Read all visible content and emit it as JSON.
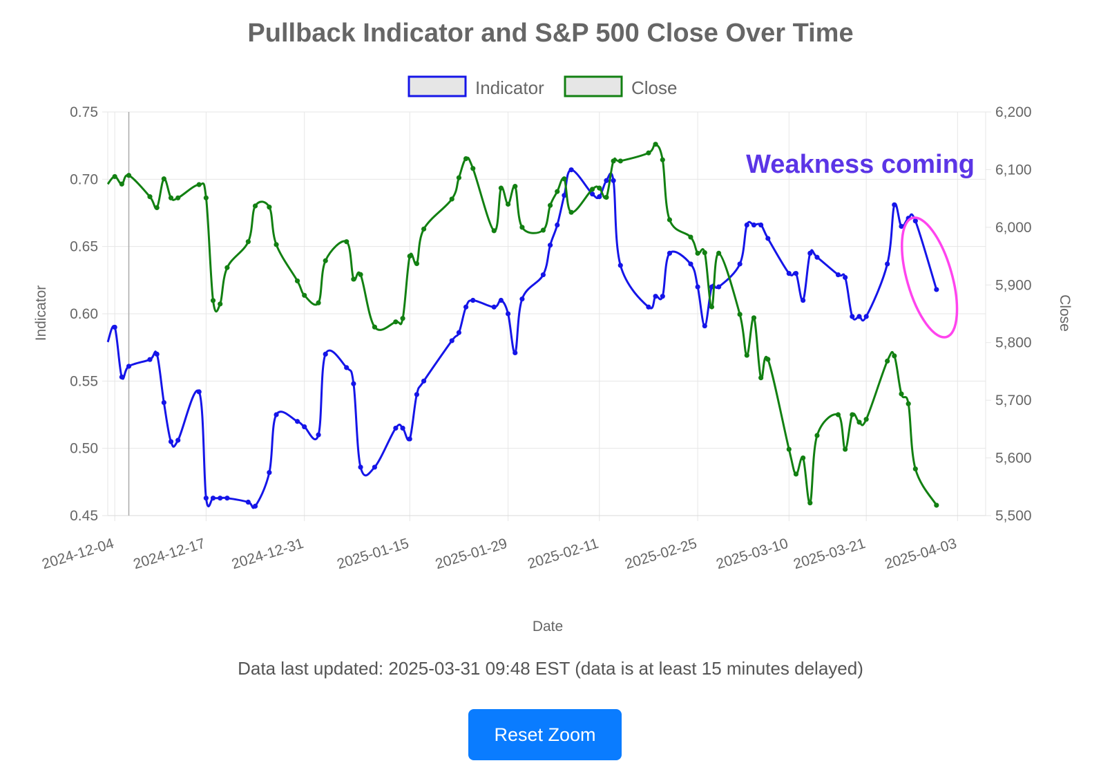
{
  "chart_data": {
    "type": "line",
    "title": "Pullback Indicator and S&P 500 Close Over Time",
    "xlabel": "Date",
    "ylabel_left": "Indicator",
    "ylabel_right": "Close",
    "x_ticks": [
      "2024-12-04",
      "2024-12-17",
      "2024-12-31",
      "2025-01-15",
      "2025-01-29",
      "2025-02-11",
      "2025-02-25",
      "2025-03-10",
      "2025-03-21",
      "2025-04-03"
    ],
    "y_left_ticks": [
      "0.75",
      "0.70",
      "0.65",
      "0.60",
      "0.55",
      "0.50",
      "0.45"
    ],
    "y_right_ticks": [
      "6,200",
      "6,100",
      "6,000",
      "5,900",
      "5,800",
      "5,700",
      "5,600",
      "5,500"
    ],
    "ylim_left": [
      0.45,
      0.75
    ],
    "ylim_right": [
      5500,
      6200
    ],
    "xlim": [
      "2024-12-03",
      "2025-04-07"
    ],
    "grid": true,
    "legend_position": "top",
    "x": [
      "2024-12-03",
      "2024-12-04",
      "2024-12-05",
      "2024-12-06",
      "2024-12-09",
      "2024-12-10",
      "2024-12-11",
      "2024-12-12",
      "2024-12-13",
      "2024-12-16",
      "2024-12-17",
      "2024-12-18",
      "2024-12-19",
      "2024-12-20",
      "2024-12-23",
      "2024-12-24",
      "2024-12-26",
      "2024-12-27",
      "2024-12-30",
      "2024-12-31",
      "2025-01-02",
      "2025-01-03",
      "2025-01-06",
      "2025-01-07",
      "2025-01-08",
      "2025-01-10",
      "2025-01-13",
      "2025-01-14",
      "2025-01-15",
      "2025-01-16",
      "2025-01-17",
      "2025-01-21",
      "2025-01-22",
      "2025-01-23",
      "2025-01-24",
      "2025-01-27",
      "2025-01-28",
      "2025-01-29",
      "2025-01-30",
      "2025-01-31",
      "2025-02-03",
      "2025-02-04",
      "2025-02-05",
      "2025-02-06",
      "2025-02-07",
      "2025-02-10",
      "2025-02-11",
      "2025-02-12",
      "2025-02-13",
      "2025-02-14",
      "2025-02-18",
      "2025-02-19",
      "2025-02-20",
      "2025-02-21",
      "2025-02-24",
      "2025-02-25",
      "2025-02-26",
      "2025-02-27",
      "2025-02-28",
      "2025-03-03",
      "2025-03-04",
      "2025-03-05",
      "2025-03-06",
      "2025-03-07",
      "2025-03-10",
      "2025-03-11",
      "2025-03-12",
      "2025-03-13",
      "2025-03-14",
      "2025-03-17",
      "2025-03-18",
      "2025-03-19",
      "2025-03-20",
      "2025-03-21",
      "2025-03-24",
      "2025-03-25",
      "2025-03-26",
      "2025-03-27",
      "2025-03-28",
      "2025-03-31"
    ],
    "series": [
      {
        "name": "Indicator",
        "color": "#1515e8",
        "axis": "left",
        "values": [
          0.579,
          0.59,
          0.553,
          0.561,
          0.566,
          0.57,
          0.534,
          0.505,
          0.506,
          0.542,
          0.463,
          0.463,
          0.463,
          0.463,
          0.46,
          0.457,
          0.482,
          0.525,
          0.52,
          0.516,
          0.51,
          0.57,
          0.56,
          0.548,
          0.486,
          0.486,
          0.515,
          0.515,
          0.507,
          0.54,
          0.55,
          0.58,
          0.586,
          0.605,
          0.61,
          0.605,
          0.61,
          0.6,
          0.571,
          0.611,
          0.629,
          0.651,
          0.666,
          0.688,
          0.707,
          0.689,
          0.687,
          0.699,
          0.699,
          0.636,
          0.605,
          0.613,
          0.613,
          0.645,
          0.637,
          0.62,
          0.591,
          0.62,
          0.62,
          0.637,
          0.666,
          0.666,
          0.666,
          0.656,
          0.63,
          0.63,
          0.61,
          0.645,
          0.642,
          0.629,
          0.627,
          0.598,
          0.598,
          0.598,
          0.637,
          0.681,
          0.665,
          0.671,
          0.669,
          0.618
        ]
      },
      {
        "name": "Close",
        "color": "#128012",
        "axis": "right",
        "values": [
          6075,
          6088,
          6075,
          6090,
          6053,
          6034,
          6084,
          6051,
          6051,
          6074,
          6051,
          5873,
          5867,
          5930,
          5975,
          6037,
          6035,
          5970,
          5907,
          5882,
          5869,
          5942,
          5975,
          5910,
          5918,
          5827,
          5836,
          5842,
          5950,
          5937,
          5997,
          6049,
          6086,
          6119,
          6102,
          5994,
          6068,
          6040,
          6071,
          6000,
          5995,
          6038,
          6062,
          6084,
          6026,
          6066,
          6068,
          6052,
          6115,
          6115,
          6129,
          6144,
          6117,
          6013,
          5983,
          5955,
          5956,
          5862,
          5955,
          5849,
          5778,
          5843,
          5739,
          5771,
          5615,
          5572,
          5600,
          5522,
          5639,
          5675,
          5615,
          5675,
          5662,
          5667,
          5768,
          5777,
          5711,
          5694,
          5581,
          5518
        ]
      }
    ],
    "annotations": [
      {
        "text": "Weakness coming",
        "color": "#5b35e6"
      },
      {
        "shape": "ellipse",
        "color": "#ff44ee",
        "center_x": "2025-03-30",
        "center_y_left": 0.627,
        "rx_days": 3.2,
        "ry_value": 0.046
      }
    ],
    "crosshair_x": "2024-12-06"
  },
  "footer": {
    "updated_text": "Data last updated: 2025-03-31 09:48 EST (data is at least 15 minutes delayed)",
    "reset_label": "Reset Zoom"
  }
}
